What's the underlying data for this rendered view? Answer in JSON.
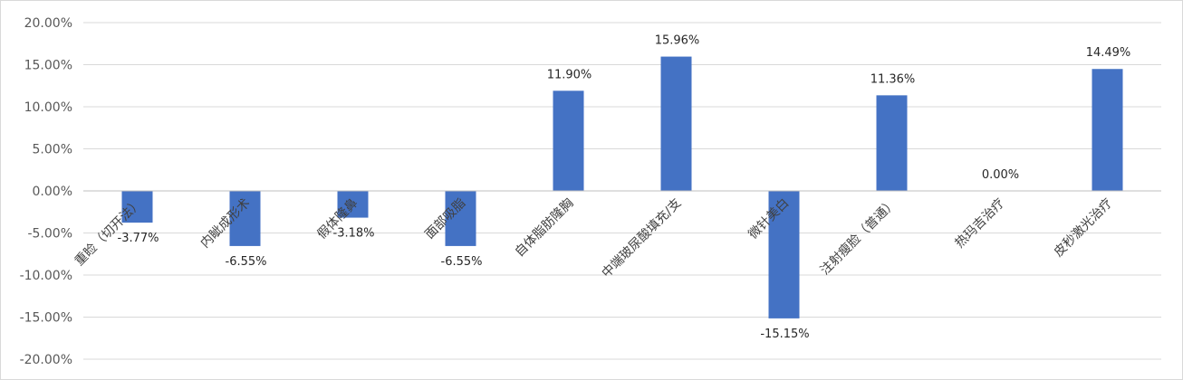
{
  "chart_data": {
    "type": "bar",
    "categories": [
      "重睑（切开法）",
      "内眦成形术",
      "假体隆鼻",
      "面部吸脂",
      "自体脂肪隆胸",
      "中端玻尿酸填充/支",
      "微针美白",
      "注射瘦脸（普通）",
      "热玛吉治疗",
      "皮秒激光治疗"
    ],
    "values": [
      -3.77,
      -6.55,
      -3.18,
      -6.55,
      11.9,
      15.96,
      -15.15,
      11.36,
      0.0,
      14.49
    ],
    "value_labels": [
      "-3.77%",
      "-6.55%",
      "-3.18%",
      "-6.55%",
      "11.90%",
      "15.96%",
      "-15.15%",
      "11.36%",
      "0.00%",
      "14.49%"
    ],
    "y_ticks": [
      "20.00%",
      "15.00%",
      "10.00%",
      "5.00%",
      "0.00%",
      "-5.00%",
      "-10.00%",
      "-15.00%",
      "-20.00%"
    ],
    "ylim": [
      -20,
      20
    ],
    "grid": true,
    "legend": "none",
    "bar_color": "#4472C4"
  }
}
